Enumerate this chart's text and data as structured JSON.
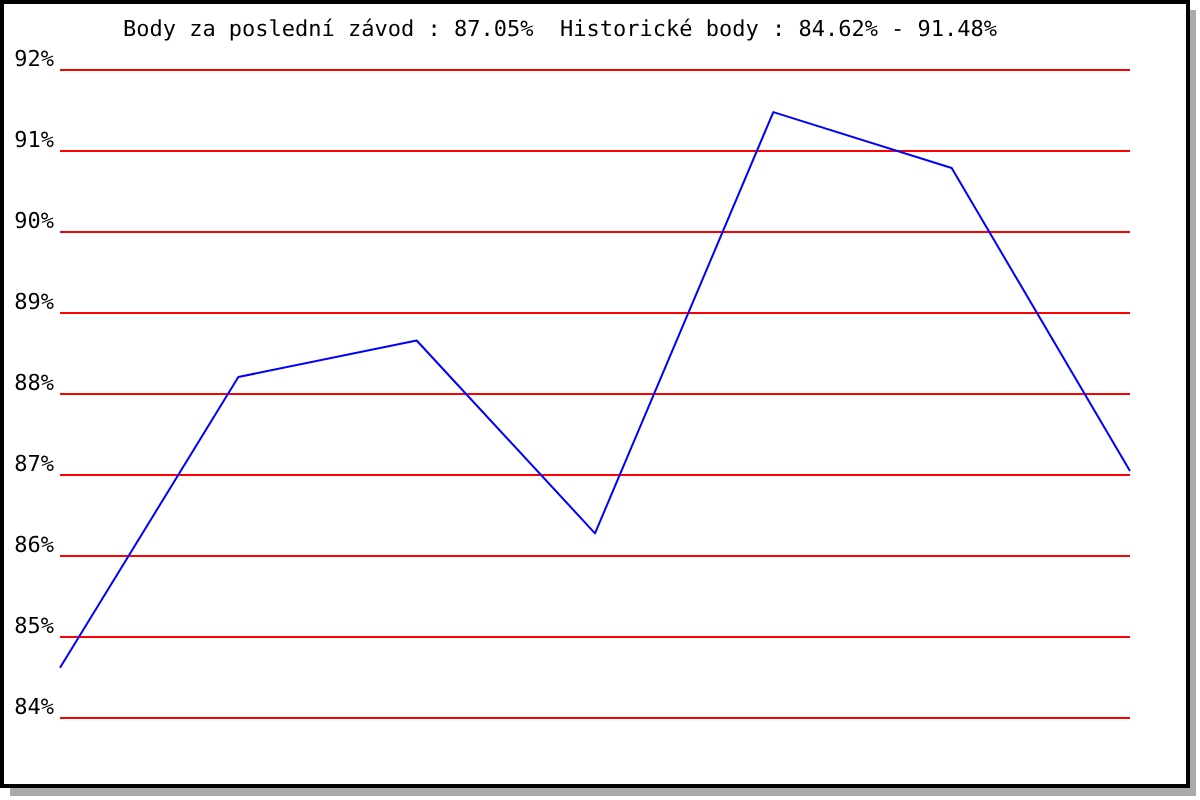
{
  "chart_data": {
    "type": "line",
    "title": "Body za poslední závod : 87.05%  Historické body : 84.62% - 91.48%",
    "categories": [
      null,
      null,
      null,
      null,
      null,
      null,
      null
    ],
    "series": [
      {
        "color": "#0000ff",
        "values": [
          84.62,
          88.21,
          88.66,
          86.28,
          91.48,
          90.79,
          87.05
        ]
      }
    ],
    "ylim": [
      84,
      92
    ],
    "yticks": [
      {
        "value": 84,
        "label": "84%"
      },
      {
        "value": 85,
        "label": "85%"
      },
      {
        "value": 86,
        "label": "86%"
      },
      {
        "value": 87,
        "label": "87%"
      },
      {
        "value": 88,
        "label": "88%"
      },
      {
        "value": 89,
        "label": "89%"
      },
      {
        "value": 90,
        "label": "90%"
      },
      {
        "value": 91,
        "label": "91%"
      },
      {
        "value": 92,
        "label": "92%"
      }
    ],
    "grid": "y",
    "marker": "none",
    "line_style": "solid"
  }
}
